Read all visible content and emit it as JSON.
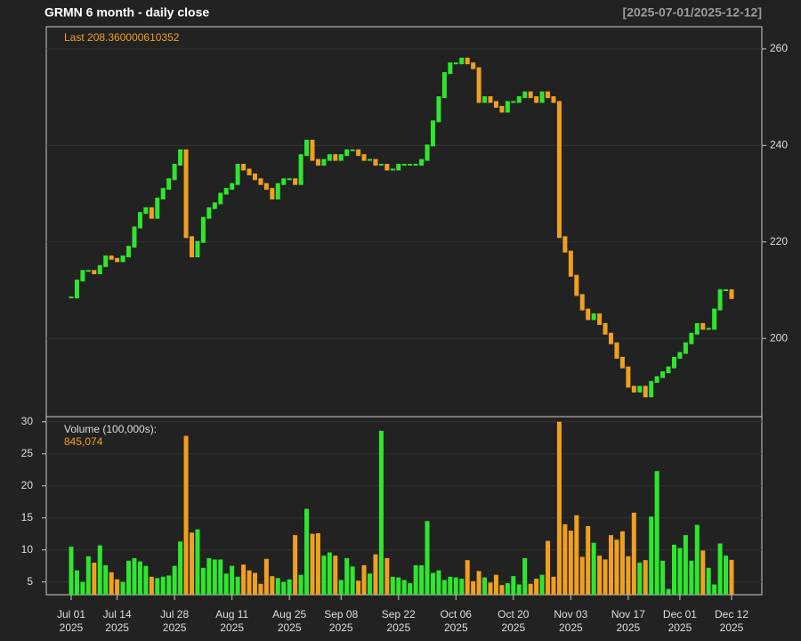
{
  "chart_data": {
    "type": "candlestick",
    "title": "GRMN  6 month - daily close",
    "range_label": "[2025-07-01/2025-12-12]",
    "last_label": "Last 208.360000610352",
    "volume_title": "Volume (100,000s):",
    "last_volume_label": "845,074",
    "up_color": "#2ee62e",
    "down_color": "#f0a020",
    "x": [
      "2025-07-01",
      "2025-07-02",
      "2025-07-03",
      "2025-07-07",
      "2025-07-08",
      "2025-07-09",
      "2025-07-10",
      "2025-07-11",
      "2025-07-14",
      "2025-07-15",
      "2025-07-16",
      "2025-07-17",
      "2025-07-18",
      "2025-07-21",
      "2025-07-22",
      "2025-07-23",
      "2025-07-24",
      "2025-07-25",
      "2025-07-28",
      "2025-07-29",
      "2025-07-30",
      "2025-07-31",
      "2025-08-01",
      "2025-08-04",
      "2025-08-05",
      "2025-08-06",
      "2025-08-07",
      "2025-08-08",
      "2025-08-11",
      "2025-08-12",
      "2025-08-13",
      "2025-08-14",
      "2025-08-15",
      "2025-08-18",
      "2025-08-19",
      "2025-08-20",
      "2025-08-21",
      "2025-08-22",
      "2025-08-25",
      "2025-08-26",
      "2025-08-27",
      "2025-08-28",
      "2025-08-29",
      "2025-09-02",
      "2025-09-03",
      "2025-09-04",
      "2025-09-05",
      "2025-09-08",
      "2025-09-09",
      "2025-09-10",
      "2025-09-11",
      "2025-09-12",
      "2025-09-15",
      "2025-09-16",
      "2025-09-17",
      "2025-09-18",
      "2025-09-19",
      "2025-09-22",
      "2025-09-23",
      "2025-09-24",
      "2025-09-25",
      "2025-09-26",
      "2025-09-29",
      "2025-09-30",
      "2025-10-01",
      "2025-10-02",
      "2025-10-03",
      "2025-10-06",
      "2025-10-07",
      "2025-10-08",
      "2025-10-09",
      "2025-10-10",
      "2025-10-13",
      "2025-10-14",
      "2025-10-15",
      "2025-10-16",
      "2025-10-17",
      "2025-10-20",
      "2025-10-21",
      "2025-10-22",
      "2025-10-23",
      "2025-10-24",
      "2025-10-27",
      "2025-10-28",
      "2025-10-29",
      "2025-10-30",
      "2025-10-31",
      "2025-11-03",
      "2025-11-04",
      "2025-11-05",
      "2025-11-06",
      "2025-11-07",
      "2025-11-10",
      "2025-11-11",
      "2025-11-12",
      "2025-11-13",
      "2025-11-14",
      "2025-11-17",
      "2025-11-18",
      "2025-11-19",
      "2025-11-20",
      "2025-11-21",
      "2025-11-24",
      "2025-11-25",
      "2025-11-26",
      "2025-11-28",
      "2025-12-01",
      "2025-12-02",
      "2025-12-03",
      "2025-12-04",
      "2025-12-05",
      "2025-12-08",
      "2025-12-09",
      "2025-12-10",
      "2025-12-11",
      "2025-12-12"
    ],
    "close": [
      208.5,
      212,
      214,
      214,
      213.5,
      215,
      217,
      216.5,
      216,
      217,
      219,
      223,
      226,
      227,
      225,
      229,
      231,
      233,
      236,
      239,
      221,
      217,
      220,
      225,
      227,
      228,
      230,
      231,
      232,
      236,
      235,
      234,
      233,
      232,
      231,
      229,
      232,
      233,
      233,
      232,
      238,
      241,
      237,
      236,
      237,
      238,
      237,
      238,
      239,
      239,
      238,
      237,
      237,
      236,
      236,
      235,
      235,
      236,
      236,
      236,
      236,
      237,
      240,
      245,
      250,
      255,
      257,
      257,
      258,
      257,
      256,
      249,
      250,
      249,
      248,
      247,
      249,
      249,
      250,
      251,
      250,
      249,
      251,
      250,
      249,
      221,
      218,
      213,
      209,
      206,
      204,
      205,
      203,
      201,
      199,
      196,
      194,
      190,
      189,
      190,
      188,
      191,
      192,
      193,
      194,
      196,
      197,
      199,
      201,
      203,
      202,
      202,
      206,
      210,
      210,
      208.36
    ],
    "volume": [
      10.5,
      6.8,
      5,
      9,
      8,
      10.7,
      7.6,
      6.5,
      5.4,
      5,
      8.3,
      8.7,
      8.2,
      7.5,
      5.8,
      5.6,
      5.8,
      6,
      7.5,
      11.3,
      27.8,
      12.7,
      13.2,
      7.2,
      8.7,
      8.5,
      8.5,
      6.3,
      7.5,
      5.8,
      7.7,
      6.8,
      6.4,
      4.7,
      8.6,
      5.9,
      5.6,
      5,
      5.4,
      12.3,
      6.1,
      16.4,
      12.5,
      12.6,
      9.1,
      9.6,
      9.1,
      5.3,
      8.7,
      7.4,
      5.2,
      7.6,
      6.3,
      9.3,
      28.6,
      8.7,
      5.8,
      5.7,
      5.3,
      4.8,
      7.6,
      7.6,
      14.5,
      6.4,
      6.8,
      5.3,
      5.8,
      5.7,
      5.5,
      8.4,
      5.1,
      6.7,
      5.7,
      4.9,
      6.1,
      4.5,
      4.8,
      5.9,
      4.6,
      8.7,
      4.7,
      5.5,
      6.1,
      11.4,
      5.8,
      30,
      14,
      13,
      15.4,
      8.9,
      13.7,
      11.1,
      9.1,
      8.5,
      12.3,
      11.6,
      12.9,
      9,
      15.8,
      8,
      8.4,
      15.2,
      22.3,
      8.3,
      3.9,
      10.8,
      10.3,
      12.3,
      8.3,
      13.9,
      9.9,
      7.2,
      4.6,
      11,
      9.1,
      8.45074
    ],
    "ylim": [
      183.8,
      264.6
    ],
    "yticks": [
      200,
      220,
      240,
      260
    ],
    "volume_ylim": [
      3.0,
      30.8
    ],
    "volume_yticks": [
      5,
      10,
      15,
      20,
      25,
      30
    ],
    "xticks": [
      {
        "value": "2025-07-01",
        "label": "Jul 01",
        "year": "2025"
      },
      {
        "value": "2025-07-14",
        "label": "Jul 14",
        "year": "2025"
      },
      {
        "value": "2025-07-28",
        "label": "Jul 28",
        "year": "2025"
      },
      {
        "value": "2025-08-11",
        "label": "Aug 11",
        "year": "2025"
      },
      {
        "value": "2025-08-25",
        "label": "Aug 25",
        "year": "2025"
      },
      {
        "value": "2025-09-08",
        "label": "Sep 08",
        "year": "2025"
      },
      {
        "value": "2025-09-22",
        "label": "Sep 22",
        "year": "2025"
      },
      {
        "value": "2025-10-06",
        "label": "Oct 06",
        "year": "2025"
      },
      {
        "value": "2025-10-20",
        "label": "Oct 20",
        "year": "2025"
      },
      {
        "value": "2025-11-03",
        "label": "Nov 03",
        "year": "2025"
      },
      {
        "value": "2025-11-17",
        "label": "Nov 17",
        "year": "2025"
      },
      {
        "value": "2025-12-01",
        "label": "Dec 01",
        "year": "2025"
      },
      {
        "value": "2025-12-12",
        "label": "Dec 12",
        "year": "2025"
      }
    ],
    "grid": true
  }
}
